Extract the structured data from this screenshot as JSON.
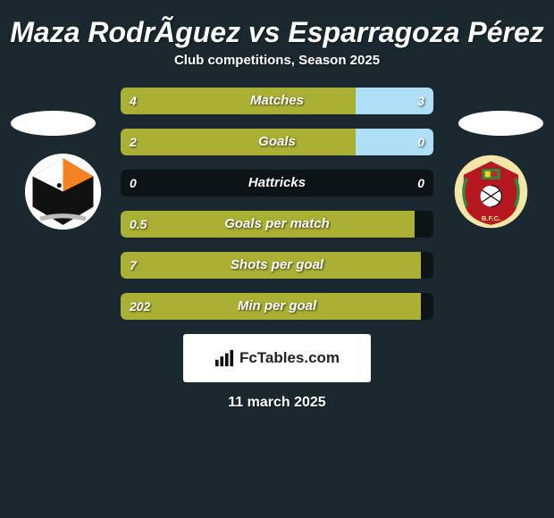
{
  "title": "Maza RodrÃ­guez vs Esparragoza Pérez",
  "subtitle": "Club competitions, Season 2025",
  "date": "11 march 2025",
  "attribution": "FcTables.com",
  "colors": {
    "background": "#1a2930",
    "track": "#0d1418",
    "left_bar": "#aab033",
    "right_bar": "#aedff7",
    "text": "#ffffff"
  },
  "stats": [
    {
      "label": "Matches",
      "left_val": "4",
      "right_val": "3",
      "left_pct": 75,
      "right_pct": 25
    },
    {
      "label": "Goals",
      "left_val": "2",
      "right_val": "0",
      "left_pct": 75,
      "right_pct": 25
    },
    {
      "label": "Hattricks",
      "left_val": "0",
      "right_val": "0",
      "left_pct": 0,
      "right_pct": 0
    },
    {
      "label": "Goals per match",
      "left_val": "0.5",
      "right_val": "",
      "left_pct": 94,
      "right_pct": 0
    },
    {
      "label": "Shots per goal",
      "left_val": "7",
      "right_val": "",
      "left_pct": 96,
      "right_pct": 0
    },
    {
      "label": "Min per goal",
      "left_val": "202",
      "right_val": "",
      "left_pct": 96,
      "right_pct": 0
    }
  ],
  "badges": {
    "left": {
      "name": "jaguares-crest"
    },
    "right": {
      "name": "bfc-crest"
    }
  }
}
